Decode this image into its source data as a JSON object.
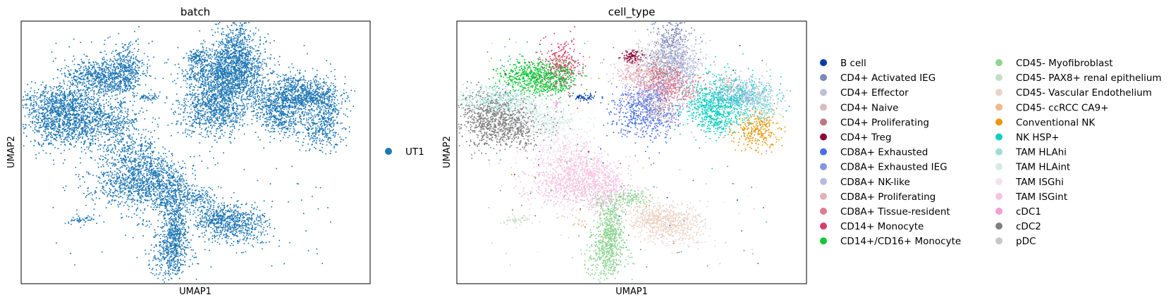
{
  "chart_data": [
    {
      "type": "scatter",
      "title": "batch",
      "xlabel": "UMAP1",
      "ylabel": "UMAP2",
      "grid": false,
      "ticks": false,
      "legend_position": "right",
      "series": [
        {
          "name": "UT1",
          "color": "#1f77b4"
        }
      ]
    },
    {
      "type": "scatter",
      "title": "cell_type",
      "xlabel": "UMAP1",
      "ylabel": "UMAP2",
      "grid": false,
      "ticks": false,
      "legend_position": "right",
      "series": [
        {
          "name": "B cell",
          "color": "#023fa5"
        },
        {
          "name": "CD4+ Activated IEG",
          "color": "#7d87b9"
        },
        {
          "name": "CD4+ Effector",
          "color": "#bec1d4"
        },
        {
          "name": "CD4+ Naive",
          "color": "#d6bcc0"
        },
        {
          "name": "CD4+ Proliferating",
          "color": "#bb7784"
        },
        {
          "name": "CD4+ Treg",
          "color": "#8e063b"
        },
        {
          "name": "CD8A+ Exhausted",
          "color": "#4a6fe3"
        },
        {
          "name": "CD8A+ Exhausted IEG",
          "color": "#8595e1"
        },
        {
          "name": "CD8A+ NK-like",
          "color": "#b5bbe3"
        },
        {
          "name": "CD8A+ Proliferating",
          "color": "#e6afb9"
        },
        {
          "name": "CD8A+ Tissue-resident",
          "color": "#e07b91"
        },
        {
          "name": "CD14+ Monocyte",
          "color": "#d33f6a"
        },
        {
          "name": "CD14+/CD16+ Monocyte",
          "color": "#11c638"
        },
        {
          "name": "CD45- Myofibroblast",
          "color": "#8dd593"
        },
        {
          "name": "CD45- PAX8+ renal epithelium",
          "color": "#c6dec7"
        },
        {
          "name": "CD45- Vascular Endothelium",
          "color": "#ead3c6"
        },
        {
          "name": "CD45- ccRCC CA9+",
          "color": "#f0b98d"
        },
        {
          "name": "Conventional NK",
          "color": "#ef9708"
        },
        {
          "name": "NK HSP+",
          "color": "#0fcfc0"
        },
        {
          "name": "TAM HLAhi",
          "color": "#9cded6"
        },
        {
          "name": "TAM HLAint",
          "color": "#d5eae7"
        },
        {
          "name": "TAM ISGhi",
          "color": "#f3e1eb"
        },
        {
          "name": "TAM ISGint",
          "color": "#f6c4e1"
        },
        {
          "name": "cDC1",
          "color": "#f79cd4"
        },
        {
          "name": "cDC2",
          "color": "#7f7f7f"
        },
        {
          "name": "pDC",
          "color": "#c7c7c7"
        }
      ]
    }
  ]
}
